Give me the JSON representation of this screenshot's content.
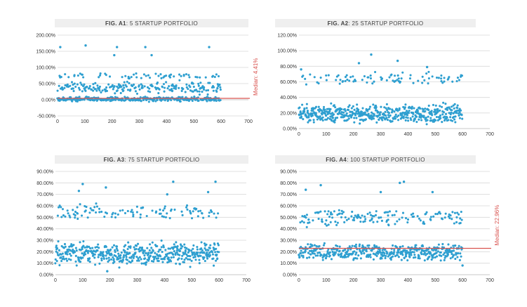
{
  "chart_data": [
    {
      "type": "scatter",
      "title_bold": "FIG. A1",
      "title_rest": ": 5 STARTUP PORTFOLIO",
      "xlim": [
        0,
        700
      ],
      "xticks": [
        0,
        100,
        200,
        300,
        400,
        500,
        600,
        700
      ],
      "ylim": [
        -0.5,
        2.0
      ],
      "yticks": [
        -0.5,
        0.0,
        0.5,
        1.0,
        1.5,
        2.0
      ],
      "ytick_labels": [
        "-50.00%",
        "0.00%",
        "50.00%",
        "100.00%",
        "150.00%",
        "200.00%"
      ],
      "median": 0.0441,
      "median_label": "Median: 4.41%",
      "grid": true,
      "n_points": 600,
      "seed": 11,
      "bands": [
        {
          "weight": 0.55,
          "lo": -0.08,
          "hi": 0.12
        },
        {
          "weight": 0.33,
          "lo": 0.12,
          "hi": 0.62
        },
        {
          "weight": 0.1,
          "lo": 0.62,
          "hi": 0.85
        }
      ],
      "outliers": [
        [
          10,
          1.63
        ],
        [
          103,
          1.68
        ],
        [
          208,
          1.38
        ],
        [
          218,
          1.63
        ],
        [
          322,
          1.63
        ],
        [
          345,
          1.38
        ],
        [
          556,
          1.63
        ]
      ]
    },
    {
      "type": "scatter",
      "title_bold": "FIG. A2",
      "title_rest": ": 25 STARTUP PORTFOLIO",
      "xlim": [
        0,
        700
      ],
      "xticks": [
        0,
        100,
        200,
        300,
        400,
        500,
        600,
        700
      ],
      "ylim": [
        0.0,
        1.2
      ],
      "yticks": [
        0.0,
        0.2,
        0.4,
        0.6,
        0.8,
        1.0,
        1.2
      ],
      "ytick_labels": [
        "0.00%",
        "20.00%",
        "40.00%",
        "60.00%",
        "80.00%",
        "100.00%",
        "120.00%"
      ],
      "grid": true,
      "n_points": 600,
      "seed": 23,
      "bands": [
        {
          "weight": 0.84,
          "lo": 0.02,
          "hi": 0.36
        },
        {
          "weight": 0.14,
          "lo": 0.53,
          "hi": 0.75
        }
      ],
      "outliers": [
        [
          265,
          0.95
        ],
        [
          362,
          0.87
        ],
        [
          220,
          0.84
        ],
        [
          470,
          0.79
        ],
        [
          8,
          0.76
        ]
      ]
    },
    {
      "type": "scatter",
      "title_bold": "FIG. A3",
      "title_rest": ": 75 STARTUP PORTFOLIO",
      "xlim": [
        0,
        700
      ],
      "xticks": [
        0,
        100,
        200,
        300,
        400,
        500,
        600,
        700
      ],
      "ylim": [
        0.0,
        0.9
      ],
      "yticks": [
        0.0,
        0.1,
        0.2,
        0.3,
        0.4,
        0.5,
        0.6,
        0.7,
        0.8,
        0.9
      ],
      "ytick_labels": [
        "0.00%",
        "10.00%",
        "20.00%",
        "30.00%",
        "40.00%",
        "50.00%",
        "60.00%",
        "70.00%",
        "80.00%",
        "90.00%"
      ],
      "grid": true,
      "n_points": 600,
      "seed": 37,
      "bands": [
        {
          "weight": 0.76,
          "lo": 0.05,
          "hi": 0.32
        },
        {
          "weight": 0.2,
          "lo": 0.45,
          "hi": 0.65
        }
      ],
      "outliers": [
        [
          100,
          0.79
        ],
        [
          185,
          0.76
        ],
        [
          432,
          0.81
        ],
        [
          587,
          0.81
        ],
        [
          86,
          0.73
        ],
        [
          410,
          0.7
        ],
        [
          560,
          0.72
        ],
        [
          190,
          0.03
        ]
      ]
    },
    {
      "type": "scatter",
      "title_bold": "FIG. A4",
      "title_rest": ": 100 STARTUP PORTFOLIO",
      "xlim": [
        0,
        700
      ],
      "xticks": [
        0,
        100,
        200,
        300,
        400,
        500,
        600,
        700
      ],
      "ylim": [
        0.0,
        0.9
      ],
      "yticks": [
        0.0,
        0.1,
        0.2,
        0.3,
        0.4,
        0.5,
        0.6,
        0.7,
        0.8,
        0.9
      ],
      "ytick_labels": [
        "0.00%",
        "10.00%",
        "20.00%",
        "30.00%",
        "40.00%",
        "50.00%",
        "60.00%",
        "70.00%",
        "80.00%",
        "90.00%"
      ],
      "median": 0.2296,
      "median_label": "Median: 22.96%",
      "grid": true,
      "n_points": 600,
      "seed": 53,
      "bands": [
        {
          "weight": 0.7,
          "lo": 0.1,
          "hi": 0.3
        },
        {
          "weight": 0.27,
          "lo": 0.4,
          "hi": 0.6
        }
      ],
      "outliers": [
        [
          80,
          0.78
        ],
        [
          370,
          0.8
        ],
        [
          385,
          0.81
        ],
        [
          25,
          0.74
        ],
        [
          300,
          0.72
        ],
        [
          490,
          0.72
        ],
        [
          600,
          0.08
        ]
      ]
    }
  ],
  "colors": {
    "point": "#2e9fd0",
    "median_line": "#d9534f",
    "grid": "#d9d9d9",
    "title_band": "#efefef",
    "axis_text": "#333333"
  }
}
